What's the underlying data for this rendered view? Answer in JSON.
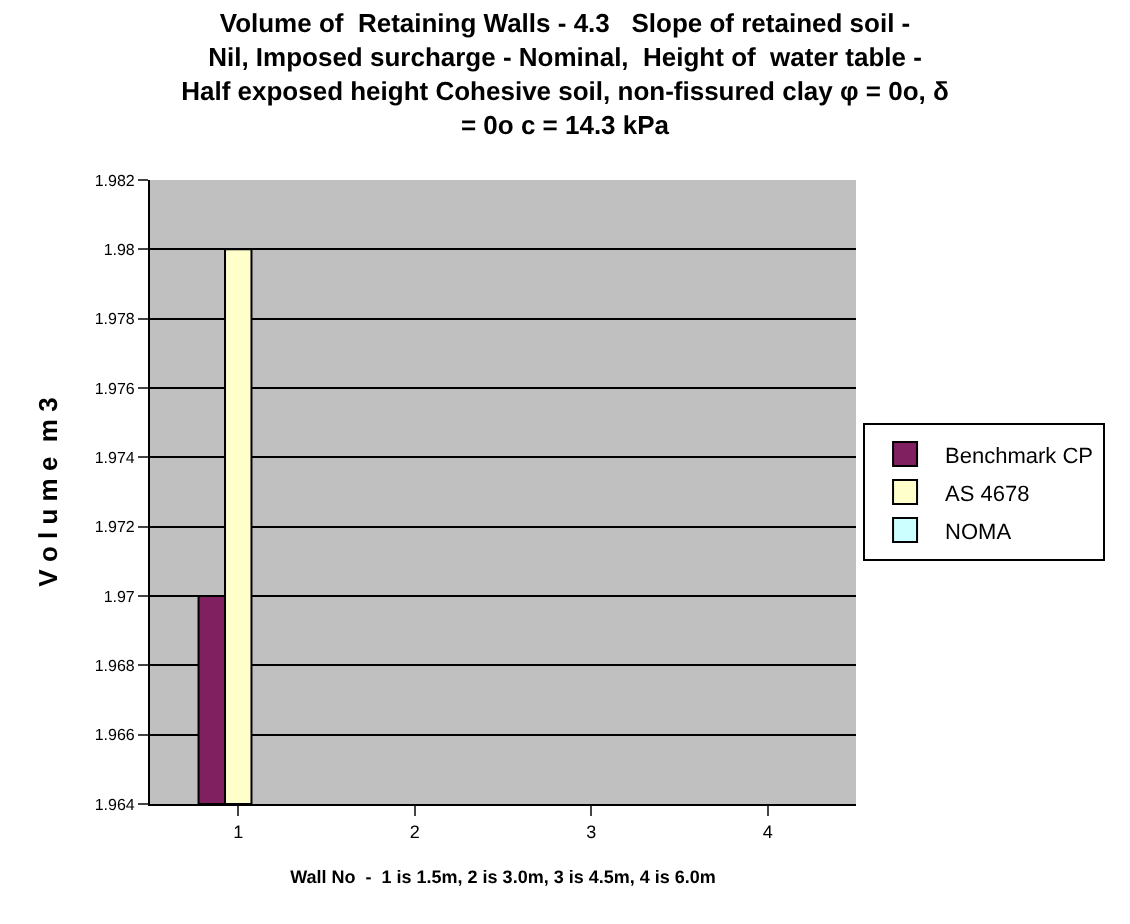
{
  "chart_data": {
    "type": "bar",
    "title": "Volume of  Retaining Walls - 4.3   Slope of retained soil - Nil, Imposed surcharge - Nominal,  Height of  water table - Half exposed height Cohesive soil, non-fissured clay φ = 0o, δ = 0o c = 14.3 kPa",
    "xlabel": "Wall No  -  1 is 1.5m, 2 is 3.0m, 3 is 4.5m, 4 is 6.0m",
    "ylabel": "V o l u m e  m 3",
    "categories": [
      "1",
      "2",
      "3",
      "4"
    ],
    "series": [
      {
        "name": "Benchmark CP",
        "color": "#802060",
        "values": [
          1.97,
          null,
          null,
          null
        ]
      },
      {
        "name": "AS 4678",
        "color": "#ffffcc",
        "values": [
          1.98,
          null,
          null,
          null
        ]
      },
      {
        "name": "NOMA",
        "color": "#ccffff",
        "values": [
          null,
          null,
          null,
          null
        ]
      }
    ],
    "ylim": [
      1.964,
      1.982
    ],
    "yticks": [
      1.964,
      1.966,
      1.968,
      1.97,
      1.972,
      1.974,
      1.976,
      1.978,
      1.98,
      1.982
    ],
    "grid": "y",
    "legend": "right"
  }
}
